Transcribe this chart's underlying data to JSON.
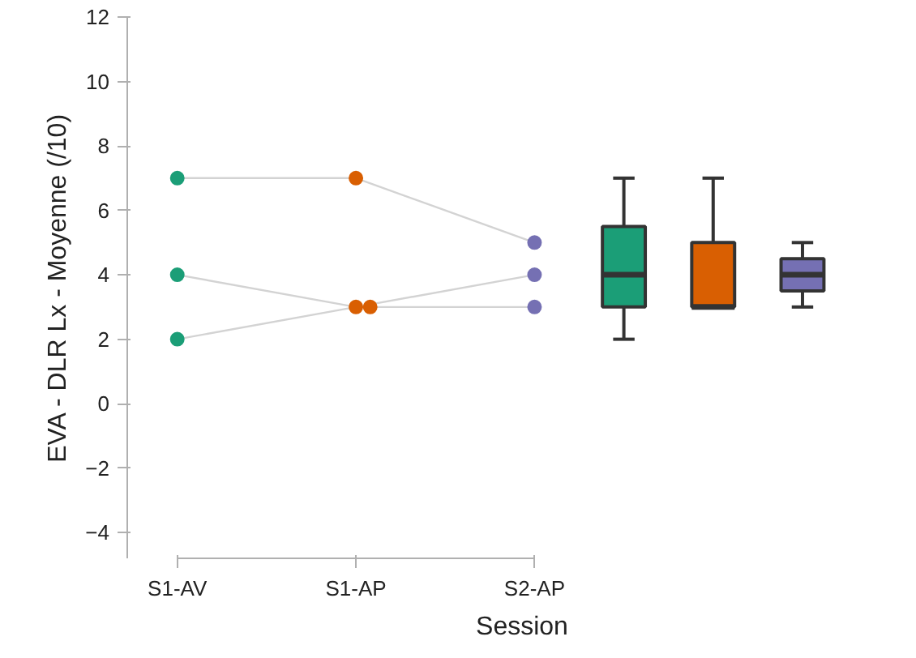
{
  "chart_data": {
    "type": "scatter",
    "xlabel": "Session",
    "ylabel": "EVA - DLR Lx - Moyenne (/10)",
    "categories": [
      "S1-AV",
      null,
      "S1-AP",
      null,
      "S2-AP",
      null,
      null,
      null
    ],
    "ylim": [
      -4.8,
      12
    ],
    "yticks": [
      -4,
      -2,
      0,
      2,
      4,
      6,
      8,
      10,
      12
    ],
    "grid": false,
    "series": [
      {
        "type": "line",
        "color": "#d3d3d3",
        "values": [
          7,
          null,
          7,
          null,
          5,
          null,
          null,
          null
        ]
      },
      {
        "type": "line",
        "color": "#d3d3d3",
        "values": [
          4,
          null,
          3,
          null,
          3,
          null,
          null,
          null
        ]
      },
      {
        "type": "line",
        "color": "#d3d3d3",
        "values": [
          2,
          null,
          3,
          null,
          4,
          null,
          null,
          null
        ]
      },
      {
        "color": "#1b9e77",
        "marker": "circle",
        "x": [
          "S1-AV",
          "S1-AV",
          "S1-AV"
        ],
        "values": [
          7,
          4,
          2
        ]
      },
      {
        "color": "#d95f02",
        "marker": "circle",
        "x": [
          "S1-AP",
          "S1-AP",
          "S1-AP"
        ],
        "values": [
          7,
          3,
          3
        ]
      },
      {
        "color": "#7570b3",
        "marker": "circle",
        "x": [
          "S2-AP",
          "S2-AP",
          "S2-AP"
        ],
        "values": [
          5,
          4,
          3
        ]
      },
      {
        "type": "box",
        "colors": [
          null,
          null,
          null,
          null,
          null,
          "#1b9e77",
          "#d95f02",
          "#7570b3"
        ],
        "boxes": [
          null,
          null,
          null,
          null,
          null,
          {
            "low": 2,
            "q1": 3,
            "median": 4,
            "q3": 5.5,
            "high": 7
          },
          {
            "low": 3,
            "q1": 3,
            "median": 3,
            "q3": 5,
            "high": 7
          },
          {
            "low": 3,
            "q1": 3.5,
            "median": 4,
            "q3": 4.5,
            "high": 5
          }
        ]
      }
    ]
  }
}
